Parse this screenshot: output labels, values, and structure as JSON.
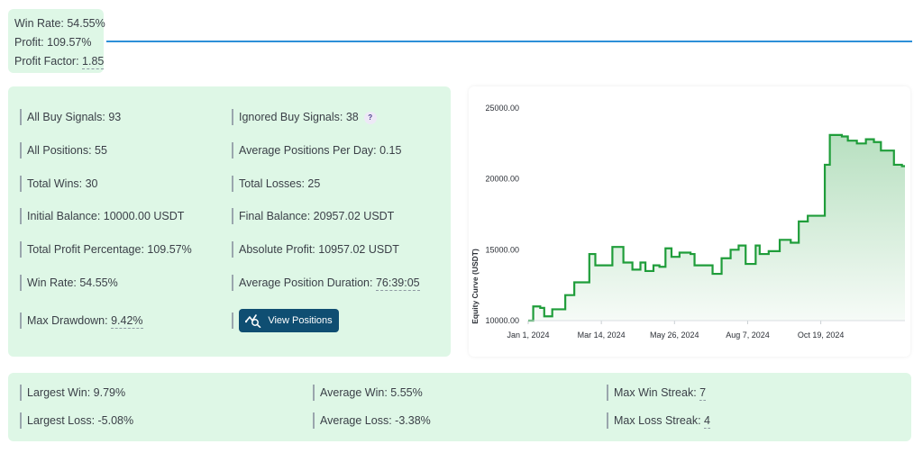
{
  "summary": {
    "win_rate": "Win Rate: 54.55%",
    "profit": "Profit: 109.57%",
    "profit_factor_label": "Profit Factor: ",
    "profit_factor_value": "1.85"
  },
  "stats": {
    "all_buy_signals": "All Buy Signals: 93",
    "ignored_buy_signals": "Ignored Buy Signals: 38",
    "help_badge": "?",
    "all_positions": "All Positions: 55",
    "avg_positions_per_day": "Average Positions Per Day: 0.15",
    "total_wins": "Total Wins: 30",
    "total_losses": "Total Losses: 25",
    "initial_balance": "Initial Balance: 10000.00 USDT",
    "final_balance": "Final Balance: 20957.02 USDT",
    "total_profit_percentage": "Total Profit Percentage: 109.57%",
    "absolute_profit": "Absolute Profit: 10957.02 USDT",
    "win_rate": "Win Rate: 54.55%",
    "avg_position_duration_label": "Average Position Duration: ",
    "avg_position_duration_value": "76:39:05",
    "max_drawdown_label": "Max Drawdown: ",
    "max_drawdown_value": "9.42%",
    "view_positions_label": "View Positions",
    "view_positions_icon": "chart-search-icon"
  },
  "bottom": {
    "largest_win": "Largest Win: 9.79%",
    "average_win": "Average Win: 5.55%",
    "max_win_streak_label": "Max Win Streak: ",
    "max_win_streak_value": "7",
    "largest_loss": "Largest Loss: -5.08%",
    "average_loss": "Average Loss: -3.38%",
    "max_loss_streak_label": "Max Loss Streak: ",
    "max_loss_streak_value": "4"
  },
  "colors": {
    "panel_bg": "#def7e6",
    "line": "#1f9d3a",
    "accent_rule": "#2d8fd8",
    "button": "#0f4e72"
  },
  "chart_data": {
    "type": "area",
    "title": "",
    "xlabel": "",
    "ylabel": "Equity Curve (USDT)",
    "ylim": [
      10000,
      25000
    ],
    "y_ticks": [
      10000,
      15000,
      20000,
      25000
    ],
    "y_tick_labels": [
      "10000.00",
      "15000.00",
      "20000.00",
      "25000.00"
    ],
    "x_tick_labels": [
      "Jan 1, 2024",
      "Mar 14, 2024",
      "May 26, 2024",
      "Aug 7, 2024",
      "Oct 19, 2024"
    ],
    "x_tick_days": [
      0,
      73,
      146,
      219,
      292
    ],
    "x_range_days": [
      0,
      376
    ],
    "grid": false,
    "series": [
      {
        "x": [
          0,
          5,
          12,
          16,
          24,
          37,
          46,
          61,
          67,
          73,
          84,
          95,
          100,
          104,
          112,
          117,
          125,
          131,
          137,
          143,
          151,
          162,
          166,
          171,
          184,
          193,
          202,
          210,
          217,
          222,
          227,
          231,
          240,
          251,
          262,
          270,
          279,
          296,
          301,
          313,
          319,
          328,
          337,
          345,
          352,
          365,
          373,
          376
        ],
        "y": [
          10000,
          11000,
          10900,
          10300,
          10800,
          11800,
          12700,
          14700,
          13900,
          13900,
          15200,
          14100,
          14100,
          13600,
          14100,
          13500,
          13900,
          13800,
          15100,
          14500,
          14800,
          14700,
          13900,
          13900,
          13300,
          14400,
          15000,
          15300,
          14000,
          14000,
          15300,
          14700,
          14900,
          15700,
          15500,
          17000,
          17400,
          21000,
          23100,
          23000,
          22700,
          22500,
          22800,
          22600,
          22000,
          21000,
          20900,
          20900
        ]
      }
    ]
  }
}
